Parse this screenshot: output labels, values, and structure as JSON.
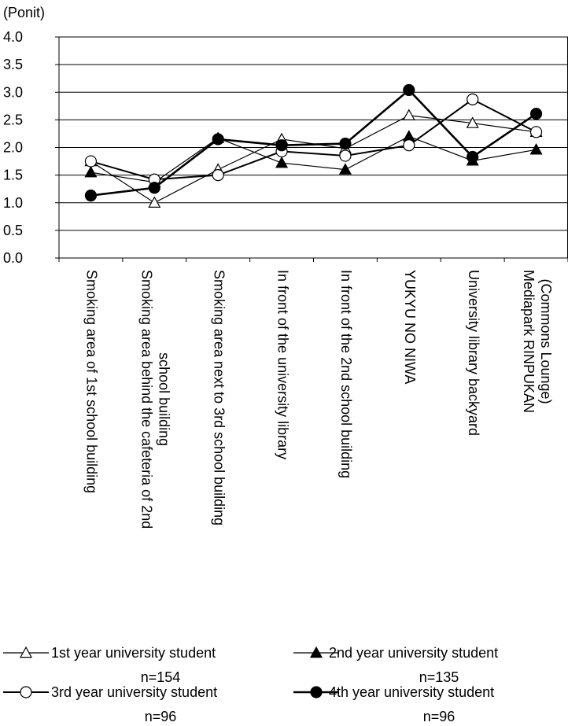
{
  "chart_data": {
    "type": "line",
    "ylabel": "(Ponit)",
    "ylim": [
      0.0,
      4.0
    ],
    "yticks": [
      "0.0",
      "0.5",
      "1.0",
      "1.5",
      "2.0",
      "2.5",
      "3.0",
      "3.5",
      "4.0"
    ],
    "grid": true,
    "legend_position": "bottom",
    "categories": [
      [
        "Smoking area of 1st school building"
      ],
      [
        "Smoking area behind the cafeteria of 2nd",
        "school building"
      ],
      [
        "Smoking area next to 3rd school building"
      ],
      [
        "In front of the university library"
      ],
      [
        "In front of the 2nd school building"
      ],
      [
        "YUKYU NO NIWA"
      ],
      [
        "University library backyard"
      ],
      [
        "Mediapark RINPUKAN",
        "(Commons Lounge)"
      ]
    ],
    "series": [
      {
        "name": "1st year university student",
        "n_label": "n=154",
        "marker": "triangle-open",
        "values": [
          1.75,
          1.0,
          1.6,
          2.15,
          1.98,
          2.58,
          2.44,
          2.28
        ]
      },
      {
        "name": "2nd year university  student",
        "n_label": "n=135",
        "marker": "triangle-filled",
        "values": [
          1.55,
          1.37,
          2.17,
          1.72,
          1.6,
          2.2,
          1.76,
          1.96
        ]
      },
      {
        "name": "3rd year university student",
        "n_label": "n=96",
        "marker": "circle-open",
        "values": [
          1.75,
          1.42,
          1.5,
          1.93,
          1.85,
          2.04,
          2.87,
          2.28
        ]
      },
      {
        "name": "4th year university  student",
        "n_label": "n=96",
        "marker": "circle-filled",
        "values": [
          1.13,
          1.27,
          2.15,
          2.04,
          2.07,
          3.04,
          1.83,
          2.61
        ]
      }
    ]
  }
}
